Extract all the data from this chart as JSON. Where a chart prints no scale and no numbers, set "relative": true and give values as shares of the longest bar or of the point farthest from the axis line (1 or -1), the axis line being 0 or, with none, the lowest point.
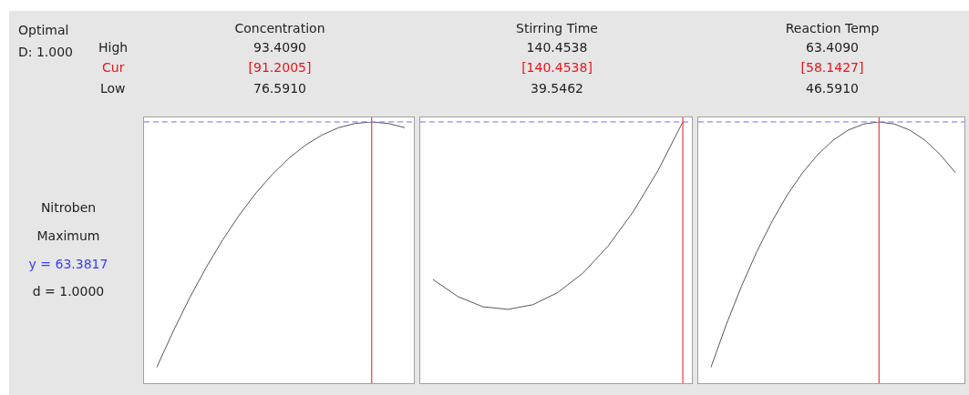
{
  "chart_data": [
    {
      "type": "other",
      "annotations": [
        "Optimal",
        "D: 1.000",
        "High",
        "Cur",
        "Low",
        "Nitroben",
        "Maximum",
        "y = 63.3817",
        "d = 1.0000"
      ]
    },
    {
      "type": "line",
      "title": "Concentration",
      "relative": true,
      "tick_labels": false,
      "marker": "none",
      "color": "#555555",
      "annotations": [
        "93.4090",
        "76.5910"
      ],
      "categories": [
        null,
        null,
        null,
        null,
        null,
        null,
        null,
        null,
        null,
        null,
        null,
        null,
        null,
        null,
        null,
        null
      ],
      "values": [
        0.057,
        0.196,
        0.325,
        0.442,
        0.548,
        0.643,
        0.727,
        0.799,
        0.861,
        0.911,
        0.95,
        0.978,
        0.994,
        1,
        0.994,
        0.978
      ],
      "ref_lines": [
        {
          "axis": "x",
          "label": "[91.2005]",
          "color": "#e8141c"
        },
        {
          "axis": "y",
          "color": "#6b6bff",
          "line_style": "dashed"
        }
      ]
    },
    {
      "type": "line",
      "title": "Stirring Time",
      "relative": true,
      "tick_labels": false,
      "marker": "none",
      "color": "#555555",
      "annotations": [
        "140.4538",
        "39.5462"
      ],
      "categories": [
        null,
        null,
        null,
        null,
        null,
        null,
        null,
        null,
        null,
        null,
        null
      ],
      "values": [
        0.395,
        0.329,
        0.29,
        0.28,
        0.298,
        0.345,
        0.419,
        0.522,
        0.653,
        0.812,
        1
      ],
      "ref_lines": [
        {
          "axis": "x",
          "label": "[140.4538]",
          "color": "#e8141c"
        },
        {
          "axis": "y",
          "color": "#6b6bff",
          "line_style": "dashed"
        }
      ]
    },
    {
      "type": "line",
      "title": "Reaction Temp",
      "relative": true,
      "tick_labels": false,
      "marker": "none",
      "color": "#555555",
      "annotations": [
        "63.4090",
        "46.5910"
      ],
      "categories": [
        null,
        null,
        null,
        null,
        null,
        null,
        null,
        null,
        null,
        null,
        null,
        null,
        null,
        null,
        null,
        null,
        null
      ],
      "values": [
        0.057,
        0.221,
        0.369,
        0.501,
        0.618,
        0.72,
        0.805,
        0.875,
        0.93,
        0.969,
        0.992,
        1,
        0.992,
        0.969,
        0.93,
        0.875,
        0.805
      ],
      "ref_lines": [
        {
          "axis": "x",
          "label": "[58.1427]",
          "color": "#e8141c"
        },
        {
          "axis": "y",
          "color": "#6b6bff",
          "line_style": "dashed"
        }
      ]
    }
  ]
}
